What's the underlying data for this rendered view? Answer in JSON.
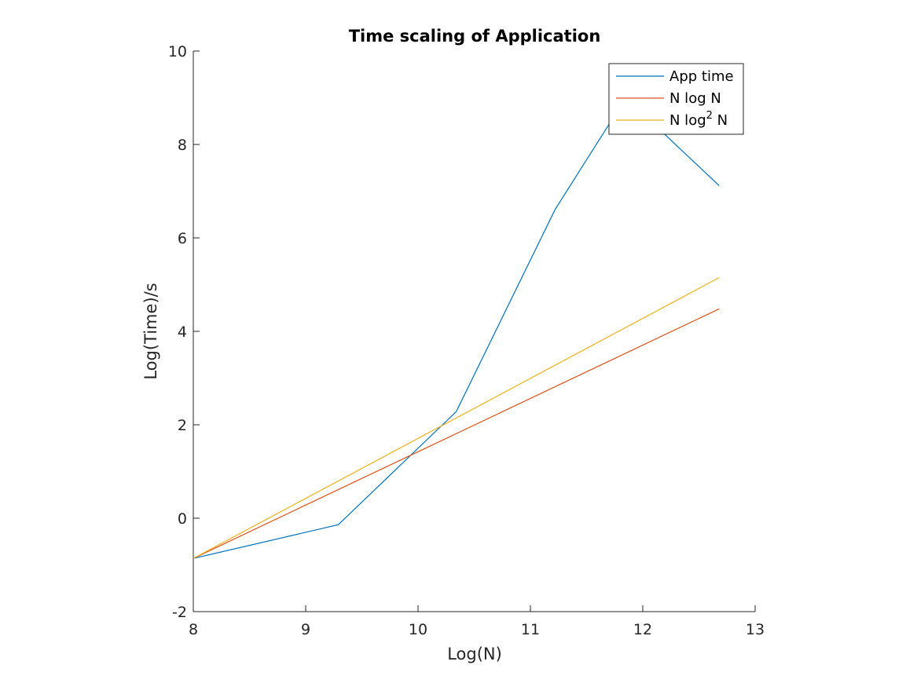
{
  "chart_data": {
    "type": "line",
    "title": "Time scaling of Application",
    "xlabel": "Log(N)",
    "ylabel": "Log(Time)/s",
    "xlim": [
      8,
      13
    ],
    "ylim": [
      -2,
      10
    ],
    "x_ticks": [
      8,
      9,
      10,
      11,
      12,
      13
    ],
    "y_ticks": [
      -2,
      0,
      2,
      4,
      6,
      8,
      10
    ],
    "grid": false,
    "legend_position": "top-right",
    "series": [
      {
        "name": "App time",
        "color": "#0072BD",
        "x": [
          8.0,
          9.29,
          10.34,
          11.22,
          11.85,
          12.68
        ],
        "y": [
          -0.86,
          -0.14,
          2.28,
          6.61,
          9.0,
          7.12
        ]
      },
      {
        "name": "N log N",
        "color": "#D95319",
        "x": [
          8.0,
          12.68
        ],
        "y": [
          -0.86,
          4.48
        ]
      },
      {
        "name": "N log^2 N",
        "legend_base": "N log",
        "legend_sup": "2",
        "legend_tail": " N",
        "color": "#EDB120",
        "x": [
          8.0,
          12.68
        ],
        "y": [
          -0.86,
          5.15
        ]
      }
    ]
  }
}
